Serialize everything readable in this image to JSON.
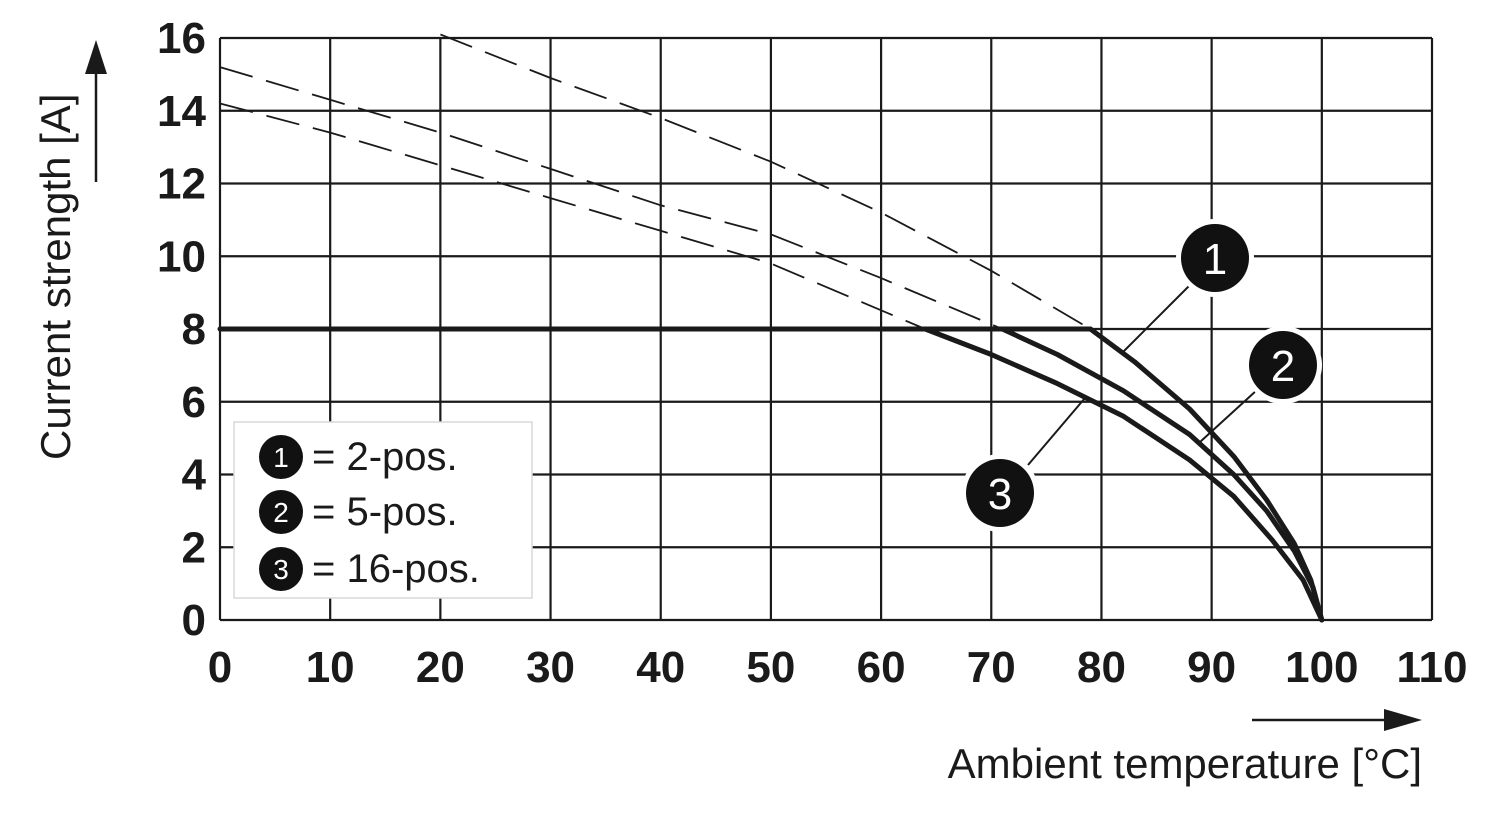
{
  "chart_data": {
    "type": "line",
    "xlabel": "Ambient temperature [°C]",
    "ylabel": "Current strength [A]",
    "xlim": [
      0,
      110
    ],
    "ylim": [
      0,
      16
    ],
    "x_ticks": [
      "0",
      "10",
      "20",
      "30",
      "40",
      "50",
      "60",
      "70",
      "80",
      "90",
      "100",
      "110"
    ],
    "y_ticks": [
      "0",
      "2",
      "4",
      "6",
      "8",
      "10",
      "12",
      "14",
      "16"
    ],
    "grid": true,
    "legend": [
      {
        "marker": "1",
        "text": "= 2-pos."
      },
      {
        "marker": "2",
        "text": "= 5-pos."
      },
      {
        "marker": "3",
        "text": "= 16-pos."
      }
    ],
    "series": [
      {
        "marker": "1",
        "derated": [
          [
            79,
            8
          ],
          [
            83,
            7.1
          ],
          [
            88,
            5.8
          ],
          [
            92,
            4.5
          ],
          [
            95,
            3.3
          ],
          [
            97.5,
            2.1
          ],
          [
            99,
            1.1
          ],
          [
            100,
            0
          ]
        ],
        "theoretical": [
          [
            20,
            16.1
          ],
          [
            30,
            14.9
          ],
          [
            40,
            13.8
          ],
          [
            50,
            12.6
          ],
          [
            60,
            11.2
          ],
          [
            70,
            9.6
          ],
          [
            79,
            8
          ]
        ]
      },
      {
        "marker": "2",
        "derated": [
          [
            71,
            8
          ],
          [
            76,
            7.3
          ],
          [
            82,
            6.3
          ],
          [
            88,
            5.1
          ],
          [
            92,
            4.0
          ],
          [
            95,
            3.0
          ],
          [
            97.5,
            1.9
          ],
          [
            99.2,
            0.9
          ],
          [
            100,
            0
          ]
        ],
        "theoretical": [
          [
            0,
            15.2
          ],
          [
            10,
            14.3
          ],
          [
            20,
            13.4
          ],
          [
            30,
            12.4
          ],
          [
            40,
            11.4
          ],
          [
            50,
            10.6
          ],
          [
            60,
            9.4
          ],
          [
            71,
            8
          ]
        ]
      },
      {
        "marker": "3",
        "derated": [
          [
            64,
            8
          ],
          [
            70,
            7.3
          ],
          [
            76,
            6.5
          ],
          [
            82,
            5.6
          ],
          [
            88,
            4.4
          ],
          [
            92,
            3.4
          ],
          [
            95.5,
            2.2
          ],
          [
            98.3,
            1.1
          ],
          [
            100,
            0
          ]
        ],
        "theoretical": [
          [
            0,
            14.2
          ],
          [
            10,
            13.4
          ],
          [
            20,
            12.5
          ],
          [
            30,
            11.6
          ],
          [
            40,
            10.7
          ],
          [
            50,
            9.8
          ],
          [
            64,
            8
          ]
        ]
      }
    ],
    "common_limit": [
      [
        0,
        8
      ],
      [
        79,
        8
      ]
    ],
    "callouts": [
      {
        "marker": "1",
        "series": "1"
      },
      {
        "marker": "2",
        "series": "2"
      },
      {
        "marker": "3",
        "series": "3"
      }
    ]
  }
}
